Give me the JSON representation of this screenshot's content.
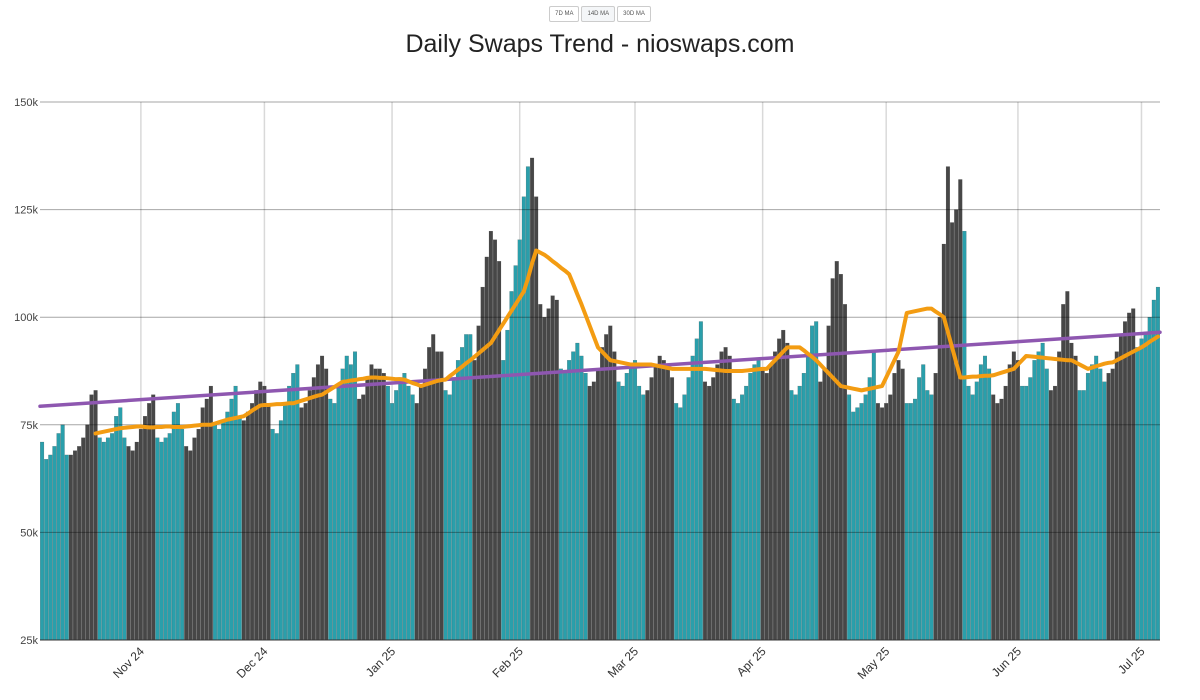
{
  "controls": {
    "buttons": [
      "7D MA",
      "14D MA",
      "30D MA"
    ],
    "active": 1
  },
  "chart_data": {
    "type": "bar",
    "title": "Daily Swaps Trend - nioswaps.com",
    "ylim": [
      25,
      150
    ],
    "yticks": [
      {
        "value": 25,
        "label": "25k"
      },
      {
        "value": 50,
        "label": "50k"
      },
      {
        "value": 75,
        "label": "75k"
      },
      {
        "value": 100,
        "label": "100k"
      },
      {
        "value": 125,
        "label": "125k"
      },
      {
        "value": 150,
        "label": "150k"
      }
    ],
    "grid": true,
    "bar_colors": [
      "#2a9fab",
      "#474747"
    ],
    "color_period": 7,
    "month_labels": [
      {
        "index": 24,
        "label": "Nov 24"
      },
      {
        "index": 54,
        "label": "Dec 24"
      },
      {
        "index": 85,
        "label": "Jan 25"
      },
      {
        "index": 116,
        "label": "Feb 25"
      },
      {
        "index": 144,
        "label": "Mar 25"
      },
      {
        "index": 175,
        "label": "Apr 25"
      },
      {
        "index": 205,
        "label": "May 25"
      },
      {
        "index": 237,
        "label": "Jun 25"
      },
      {
        "index": 267,
        "label": "Jul 25"
      }
    ],
    "values": [
      71,
      67,
      68,
      70,
      73,
      75,
      68,
      68,
      69,
      70,
      72,
      75,
      82,
      83,
      72,
      71,
      72,
      73,
      77,
      79,
      72,
      70,
      69,
      71,
      74,
      77,
      80,
      82,
      72,
      71,
      72,
      73,
      78,
      80,
      74,
      70,
      69,
      72,
      74,
      79,
      81,
      84,
      75,
      74,
      76,
      78,
      81,
      84,
      77,
      76,
      78,
      80,
      83,
      85,
      84,
      80,
      74,
      73,
      76,
      80,
      84,
      87,
      89,
      79,
      80,
      83,
      86,
      89,
      91,
      88,
      81,
      80,
      84,
      88,
      91,
      89,
      92,
      81,
      82,
      86,
      89,
      88,
      88,
      87,
      84,
      80,
      83,
      86,
      87,
      84,
      82,
      80,
      84,
      88,
      93,
      96,
      92,
      92,
      83,
      82,
      86,
      90,
      93,
      96,
      96,
      90,
      98,
      107,
      114,
      120,
      118,
      113,
      90,
      97,
      106,
      112,
      118,
      128,
      135,
      137,
      128,
      103,
      100,
      102,
      105,
      104,
      88,
      87,
      90,
      92,
      94,
      91,
      87,
      84,
      85,
      88,
      93,
      96,
      98,
      92,
      85,
      84,
      87,
      89,
      90,
      84,
      82,
      83,
      86,
      89,
      91,
      90,
      88,
      86,
      80,
      79,
      82,
      86,
      91,
      95,
      99,
      85,
      84,
      86,
      89,
      92,
      93,
      91,
      81,
      80,
      82,
      84,
      87,
      89,
      90,
      88,
      87,
      89,
      92,
      95,
      97,
      94,
      83,
      82,
      84,
      87,
      91,
      98,
      99,
      85,
      88,
      98,
      109,
      113,
      110,
      103,
      82,
      78,
      79,
      80,
      82,
      86,
      92,
      80,
      79,
      80,
      82,
      87,
      90,
      88,
      80,
      80,
      81,
      86,
      89,
      83,
      82,
      87,
      100,
      117,
      135,
      122,
      125,
      132,
      120,
      84,
      82,
      85,
      89,
      91,
      88,
      82,
      80,
      81,
      84,
      89,
      92,
      90,
      84,
      84,
      86,
      90,
      92,
      94,
      88,
      83,
      84,
      92,
      103,
      106,
      94,
      91,
      83,
      83,
      87,
      89,
      91,
      88,
      85,
      87,
      88,
      92,
      96,
      99,
      101,
      102,
      93,
      95,
      96,
      100,
      104,
      107
    ],
    "ma": {
      "color": "#f39c12",
      "values": [
        null,
        null,
        null,
        null,
        null,
        null,
        null,
        null,
        null,
        null,
        null,
        null,
        null,
        73,
        73.2,
        73.4,
        73.6,
        73.8,
        74,
        74.2,
        74.3,
        74.4,
        74.5,
        74.6,
        74.6,
        74.5,
        74.4,
        74.4,
        74.5,
        74.5,
        74.6,
        74.6,
        74.5,
        74.5,
        74.5,
        74.6,
        74.7,
        74.8,
        74.9,
        75,
        75,
        75,
        75.3,
        75.6,
        75.9,
        76.2,
        76.4,
        76.6,
        76.8,
        77,
        77.6,
        78.3,
        78.9,
        79.5,
        79.6,
        79.6,
        79.7,
        79.8,
        79.8,
        79.9,
        80,
        80,
        80.3,
        80.6,
        80.9,
        81.2,
        81.5,
        81.8,
        82,
        82.6,
        83.2,
        83.8,
        84.4,
        85,
        85.1,
        85.3,
        85.4,
        85.6,
        85.7,
        85.9,
        86,
        86,
        85.9,
        85.9,
        85.8,
        85.7,
        85.6,
        85.6,
        85.5,
        85.1,
        84.7,
        84.4,
        84,
        84.3,
        84.6,
        84.9,
        85.2,
        85.4,
        85.5,
        86.3,
        87,
        87.8,
        88.5,
        89.3,
        90,
        90.8,
        91.6,
        92.4,
        93.2,
        94,
        95.5,
        97,
        98.5,
        100,
        101.5,
        103,
        104.5,
        106,
        109,
        112.5,
        115.5,
        115,
        114.5,
        113.8,
        113,
        112.3,
        111.5,
        110.8,
        110,
        107.7,
        105.3,
        103,
        100.5,
        98,
        95.5,
        93,
        92,
        91,
        90,
        89.8,
        89.6,
        89.4,
        89.2,
        89,
        89,
        89,
        89,
        89,
        89,
        88.8,
        88.6,
        88.4,
        88.2,
        88,
        88,
        88,
        88,
        88,
        88,
        88,
        88,
        88,
        87.9,
        87.8,
        87.7,
        87.6,
        87.5,
        87.5,
        87.5,
        87.5,
        87.5,
        87.6,
        87.7,
        87.8,
        87.9,
        88,
        88,
        89,
        90,
        91,
        92,
        93,
        93,
        93,
        93,
        92.3,
        91.5,
        90.8,
        90,
        89,
        88,
        87,
        86,
        85,
        84,
        83.8,
        83.6,
        83.4,
        83.2,
        83,
        83.2,
        83.4,
        83.6,
        83.8,
        84,
        86,
        88,
        90,
        92,
        96.5,
        101,
        101.2,
        101.4,
        101.6,
        101.8,
        102,
        102,
        101.3,
        100.7,
        100,
        96.5,
        93,
        89.5,
        86,
        86,
        86.1,
        86.2,
        86.2,
        86.3,
        86.4,
        86.4,
        86.5,
        86.8,
        87.1,
        87.4,
        87.7,
        88,
        89,
        90,
        91,
        90.9,
        90.8,
        90.7,
        90.6,
        90.5,
        90.4,
        90.3,
        90.2,
        90.1,
        90,
        90,
        89.5,
        89,
        88.5,
        88,
        88.3,
        88.6,
        88.9,
        89.2,
        89.4,
        89.5,
        90,
        90.5,
        91,
        91.5,
        92,
        92.5,
        93,
        93.6,
        94.3,
        94.9,
        95.5
      ]
    },
    "trend": {
      "color": "#8e57b0",
      "values": [
        79.3,
        96.5
      ]
    }
  }
}
